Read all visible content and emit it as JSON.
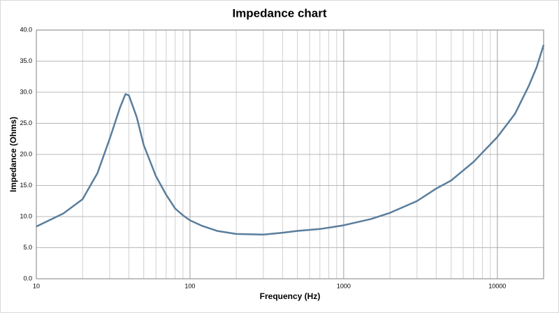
{
  "chart_data": {
    "type": "line",
    "title": "Impedance chart",
    "x_label": "Frequency (Hz)",
    "y_label": "Impedance (Ohms)",
    "x_scale": "log",
    "xlim": [
      10,
      20000
    ],
    "xticks": [
      10,
      100,
      1000,
      10000
    ],
    "xminorticks": [
      20,
      30,
      40,
      50,
      60,
      70,
      80,
      90,
      200,
      300,
      400,
      500,
      600,
      700,
      800,
      900,
      2000,
      3000,
      4000,
      5000,
      6000,
      7000,
      8000,
      9000
    ],
    "ylim": [
      0,
      40
    ],
    "yticks": [
      {
        "value": 0,
        "label": "0.0"
      },
      {
        "value": 5,
        "label": "5.0"
      },
      {
        "value": 10,
        "label": "10.0"
      },
      {
        "value": 15,
        "label": "15.0"
      },
      {
        "value": 20,
        "label": "20.0"
      },
      {
        "value": 25,
        "label": "25.0"
      },
      {
        "value": 30,
        "label": "30.0"
      },
      {
        "value": 35,
        "label": "35.0"
      },
      {
        "value": 40,
        "label": "40.0"
      }
    ],
    "grid": true,
    "series": [
      {
        "color": "#5a7d9c",
        "x": [
          10,
          15,
          20,
          25,
          30,
          35,
          38,
          40,
          45,
          50,
          60,
          70,
          80,
          90,
          100,
          120,
          150,
          200,
          300,
          400,
          500,
          700,
          1000,
          1500,
          2000,
          3000,
          4000,
          5000,
          7000,
          10000,
          13000,
          16000,
          18000,
          20000
        ],
        "values": [
          8.4,
          10.5,
          12.8,
          17,
          22.5,
          27.5,
          29.7,
          29.5,
          26,
          21.5,
          16.5,
          13.5,
          11.3,
          10.2,
          9.4,
          8.5,
          7.7,
          7.2,
          7.1,
          7.4,
          7.7,
          8.0,
          8.6,
          9.6,
          10.6,
          12.5,
          14.5,
          15.8,
          18.8,
          22.8,
          26.5,
          31,
          34,
          37.6
        ]
      }
    ]
  }
}
